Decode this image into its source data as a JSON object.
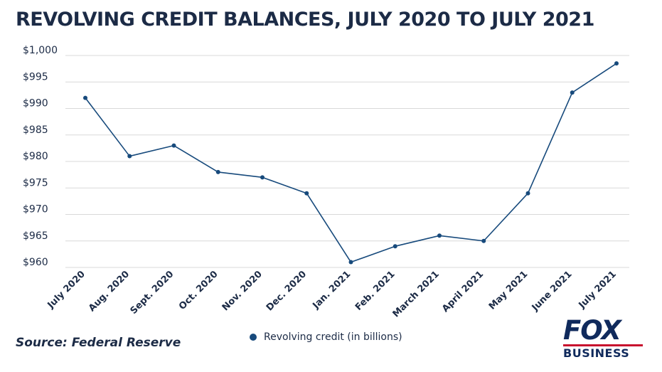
{
  "title": "REVOLVING CREDIT BALANCES, JULY 2020 TO JULY 2021",
  "source": "Source: Federal Reserve",
  "logo": {
    "top": "FOX",
    "bottom": "BUSINESS"
  },
  "colors": {
    "line": "#174a7c",
    "grid": "#d9d9d9",
    "text": "#1c2b46",
    "logo_red": "#c8102e"
  },
  "chart_data": {
    "type": "line",
    "categories": [
      "July 2020",
      "Aug. 2020",
      "Sept. 2020",
      "Oct. 2020",
      "Nov. 2020",
      "Dec. 2020",
      "Jan. 2021",
      "Feb. 2021",
      "March 2021",
      "April 2021",
      "May 2021",
      "June 2021",
      "July 2021"
    ],
    "series": [
      {
        "name": "Revolving credit (in billions)",
        "values": [
          992,
          981,
          983,
          978,
          977,
          974,
          961,
          964,
          966,
          965,
          974,
          993,
          998.5
        ]
      }
    ],
    "yticks": [
      "$960",
      "$965",
      "$970",
      "$975",
      "$980",
      "$985",
      "$990",
      "$995",
      "$1,000"
    ],
    "ylim": [
      960,
      1000
    ],
    "grid": true,
    "legend": "bottom-center"
  }
}
